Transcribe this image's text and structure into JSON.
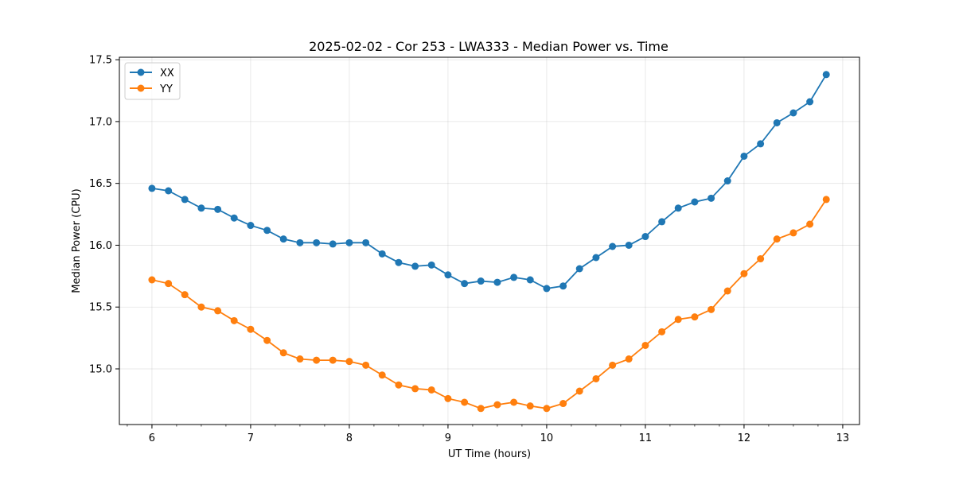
{
  "chart_data": {
    "type": "line",
    "title": "2025-02-02 - Cor 253 - LWA333 - Median Power vs. Time",
    "xlabel": "UT Time (hours)",
    "ylabel": "Median Power (CPU)",
    "xlim": [
      5.67,
      13.17
    ],
    "ylim": [
      14.55,
      17.52
    ],
    "xticks": [
      6,
      7,
      8,
      9,
      10,
      11,
      12,
      13
    ],
    "xticks_minor_step": 0.25,
    "yticks": [
      15.0,
      15.5,
      16.0,
      16.5,
      17.0,
      17.5
    ],
    "ytick_labels": [
      "15.0",
      "15.5",
      "16.0",
      "16.5",
      "17.0",
      "17.5"
    ],
    "grid": true,
    "legend_position": "top-left",
    "x": [
      6.0,
      6.167,
      6.333,
      6.5,
      6.667,
      6.833,
      7.0,
      7.167,
      7.333,
      7.5,
      7.667,
      7.833,
      8.0,
      8.167,
      8.333,
      8.5,
      8.667,
      8.833,
      9.0,
      9.167,
      9.333,
      9.5,
      9.667,
      9.833,
      10.0,
      10.167,
      10.333,
      10.5,
      10.667,
      10.833,
      11.0,
      11.167,
      11.333,
      11.5,
      11.667,
      11.833,
      12.0,
      12.167,
      12.333,
      12.5,
      12.667,
      12.833
    ],
    "series": [
      {
        "name": "XX",
        "color": "#1f77b4",
        "values": [
          16.46,
          16.44,
          16.37,
          16.3,
          16.29,
          16.22,
          16.16,
          16.12,
          16.05,
          16.02,
          16.02,
          16.01,
          16.02,
          16.02,
          15.93,
          15.86,
          15.83,
          15.84,
          15.76,
          15.69,
          15.71,
          15.7,
          15.74,
          15.72,
          15.65,
          15.67,
          15.81,
          15.9,
          15.99,
          16.0,
          16.07,
          16.19,
          16.3,
          16.35,
          16.38,
          16.52,
          16.72,
          16.82,
          16.99,
          17.07,
          17.16,
          17.38
        ]
      },
      {
        "name": "YY",
        "color": "#ff7f0e",
        "values": [
          15.72,
          15.69,
          15.6,
          15.5,
          15.47,
          15.39,
          15.32,
          15.23,
          15.13,
          15.08,
          15.07,
          15.07,
          15.06,
          15.03,
          14.95,
          14.87,
          14.84,
          14.83,
          14.76,
          14.73,
          14.68,
          14.71,
          14.73,
          14.7,
          14.68,
          14.72,
          14.82,
          14.92,
          15.03,
          15.08,
          15.19,
          15.3,
          15.4,
          15.42,
          15.48,
          15.63,
          15.77,
          15.89,
          16.05,
          16.1,
          16.17,
          16.37
        ]
      }
    ]
  }
}
